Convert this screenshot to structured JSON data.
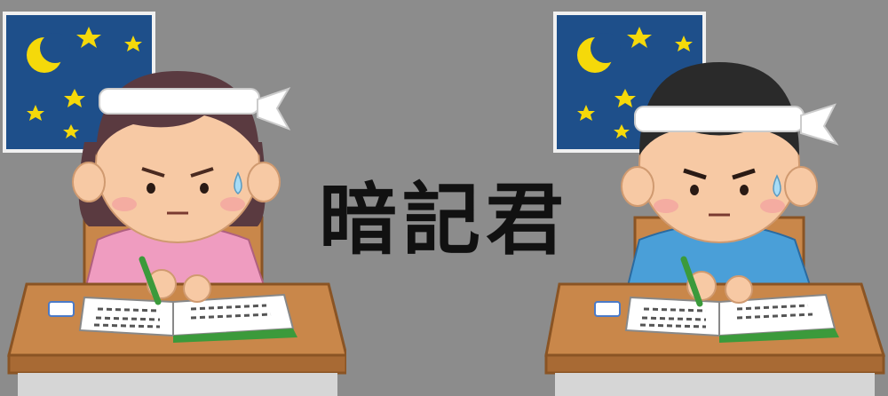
{
  "title": "暗記君",
  "colors": {
    "background": "#8c8c8c",
    "night_sky": "#1e4f8a",
    "moon_star": "#f5d90a",
    "desk": "#c9874a",
    "book_cover": "#3b9a3b",
    "girl_shirt": "#ef9cc0",
    "boy_shirt": "#4a9fd8"
  },
  "icons": [
    "moon-icon",
    "star-icon",
    "pencil-icon",
    "eraser-icon",
    "sweat-drop-icon"
  ]
}
